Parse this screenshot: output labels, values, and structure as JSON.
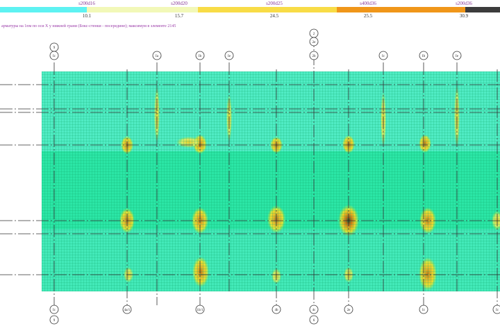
{
  "legend": {
    "items": [
      {
        "rebar": "s200d16",
        "value": "10.1",
        "color": "#5ef2f2"
      },
      {
        "rebar": "s200d20",
        "value": "15.7",
        "color": "#f2f8b8"
      },
      {
        "rebar": "s200d25",
        "value": "24.5",
        "color": "#f8dc46"
      },
      {
        "rebar": "s400d36",
        "value": "25.5",
        "color": "#f0961a"
      },
      {
        "rebar": "s200d36",
        "value": "30.9",
        "color": "#3c3c3c"
      }
    ]
  },
  "caption": "арматуры на 1пм по оси X у нижней грани (Бокс-стенки - посередине); максимум в элементе 2145",
  "colors": {
    "field": "#2be6a6",
    "field_light": "#7af0e0",
    "mesh": "#0fa86a",
    "grid_line": "#303030",
    "hot": [
      "#b8e63a",
      "#e8dc30",
      "#e0a01c",
      "#b46414",
      "#1a4a1a"
    ]
  },
  "axes": {
    "top_circled": [
      "9",
      "2"
    ],
    "top_labels": [
      "Ic",
      "Ia",
      "Ib",
      "Ie",
      "2e",
      "2b",
      "Ic",
      "Ib",
      "Ie"
    ],
    "bottom_labels": [
      "Ic",
      "4a/1",
      "1b/1",
      "4b",
      "4c",
      "2e",
      "Ic"
    ],
    "bottom_circled": [
      "9",
      "6"
    ]
  }
}
